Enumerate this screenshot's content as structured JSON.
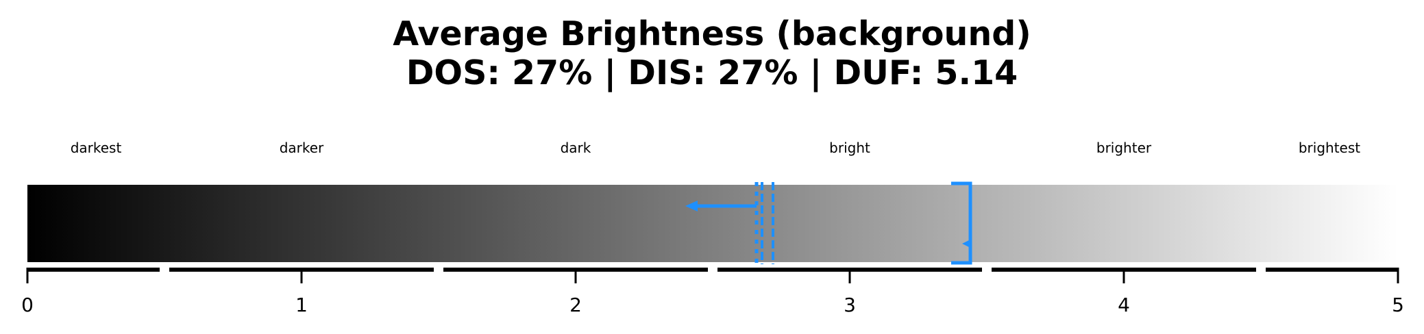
{
  "title_line1": "Average Brightness (background)",
  "title_line2": "DOS: 27% | DIS: 27% | DUF: 5.14",
  "chart_data": {
    "type": "gradient-scale",
    "xlim": [
      0,
      5
    ],
    "ticks": [
      0,
      1,
      2,
      3,
      4,
      5
    ],
    "tick_labels": [
      "0",
      "1",
      "2",
      "3",
      "4",
      "5"
    ],
    "gradient": {
      "from_color": "#000000",
      "to_color": "#ffffff"
    },
    "zones": [
      {
        "label": "darkest",
        "start": 0,
        "end": 0.5
      },
      {
        "label": "darker",
        "start": 0.5,
        "end": 1.5
      },
      {
        "label": "dark",
        "start": 1.5,
        "end": 2.5
      },
      {
        "label": "bright",
        "start": 2.5,
        "end": 3.5
      },
      {
        "label": "brighter",
        "start": 3.5,
        "end": 4.5
      },
      {
        "label": "brightest",
        "start": 4.5,
        "end": 5
      }
    ],
    "markers": {
      "color": "#1e90ff",
      "dotted_line": 2.66,
      "double_line": [
        2.68,
        2.72
      ],
      "arrow": {
        "from": 2.66,
        "to": 2.4
      },
      "bracket": {
        "from": 3.37,
        "to": 3.44
      }
    }
  }
}
